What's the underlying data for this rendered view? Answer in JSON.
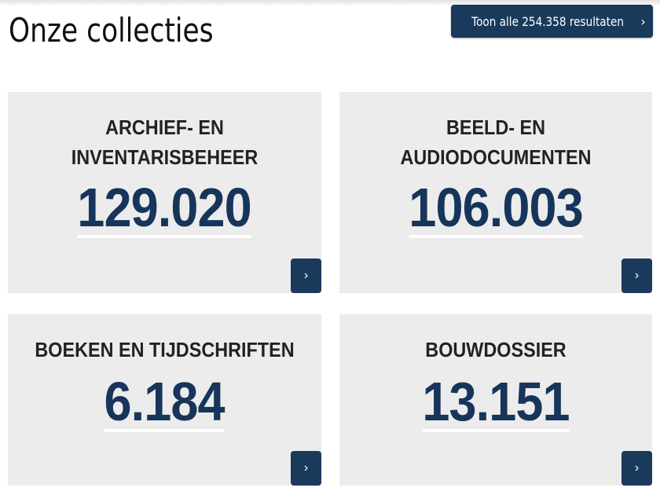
{
  "header": {
    "title": "Onze collecties",
    "all_results_label": "Toon alle 254.358 resultaten",
    "chevron": "›"
  },
  "collections": [
    {
      "title_lines": [
        "ARCHIEF- EN",
        "INVENTARISBEHEER"
      ],
      "count": "129.020"
    },
    {
      "title_lines": [
        "BEELD- EN",
        "AUDIODOCUMENTEN"
      ],
      "count": "106.003"
    },
    {
      "title_lines": [
        "BOEKEN EN TIJDSCHRIFTEN"
      ],
      "count": "6.184"
    },
    {
      "title_lines": [
        "BOUWDOSSIER"
      ],
      "count": "13.151"
    }
  ],
  "colors": {
    "accent": "#1a3a5c",
    "number": "#17355a",
    "card_bg": "#ececec"
  }
}
